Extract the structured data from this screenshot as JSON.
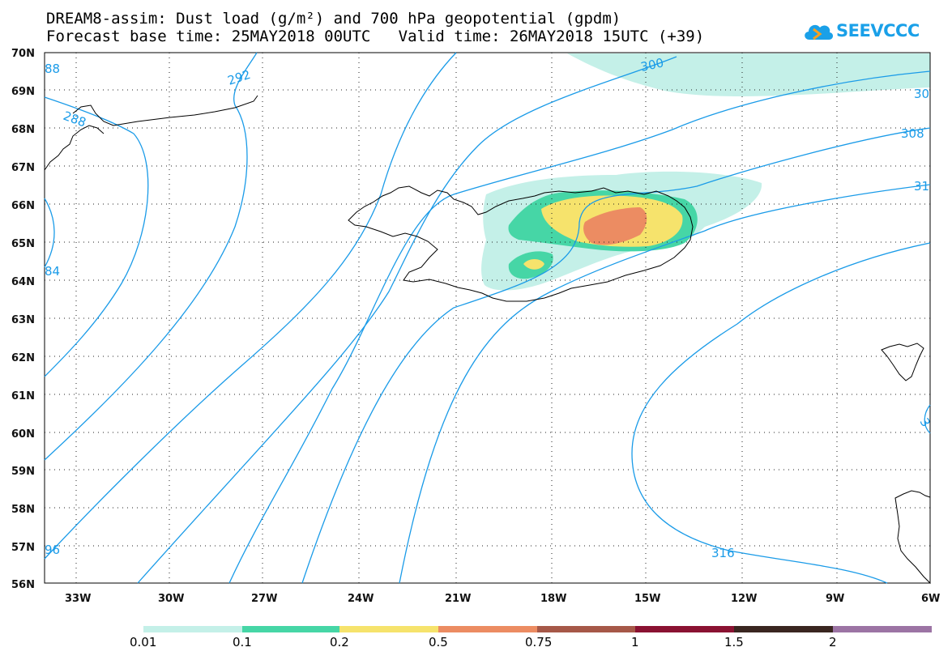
{
  "title": {
    "line1": "DREAM8-assim: Dust load (g/m²) and 700 hPa geopotential (gpdm)",
    "line2": "Forecast base time: 25MAY2018 00UTC   Valid time: 26MAY2018 15UTC (+39)"
  },
  "logo": {
    "text": "SEEVCCC",
    "icon": "cloud-icon"
  },
  "map": {
    "lat_labels": [
      "70N",
      "69N",
      "68N",
      "67N",
      "66N",
      "65N",
      "64N",
      "63N",
      "62N",
      "61N",
      "60N",
      "59N",
      "58N",
      "57N",
      "56N"
    ],
    "lon_labels": [
      "33W",
      "30W",
      "27W",
      "24W",
      "21W",
      "18W",
      "15W",
      "12W",
      "9W",
      "6W"
    ],
    "contour_labels": [
      "288",
      "292",
      "300",
      "308",
      "316",
      "88",
      "84",
      "96",
      "30",
      "31",
      "3"
    ],
    "contour_color": "#1a9be8"
  },
  "colorbar": {
    "colors": [
      "#c4f0e8",
      "#46d6a6",
      "#f6e36c",
      "#ec8c62",
      "#a65848",
      "#8a1232",
      "#3a2620",
      "#9c74a4"
    ],
    "labels": [
      "0.01",
      "0.1",
      "0.2",
      "0.5",
      "0.75",
      "1",
      "1.5",
      "2"
    ]
  }
}
